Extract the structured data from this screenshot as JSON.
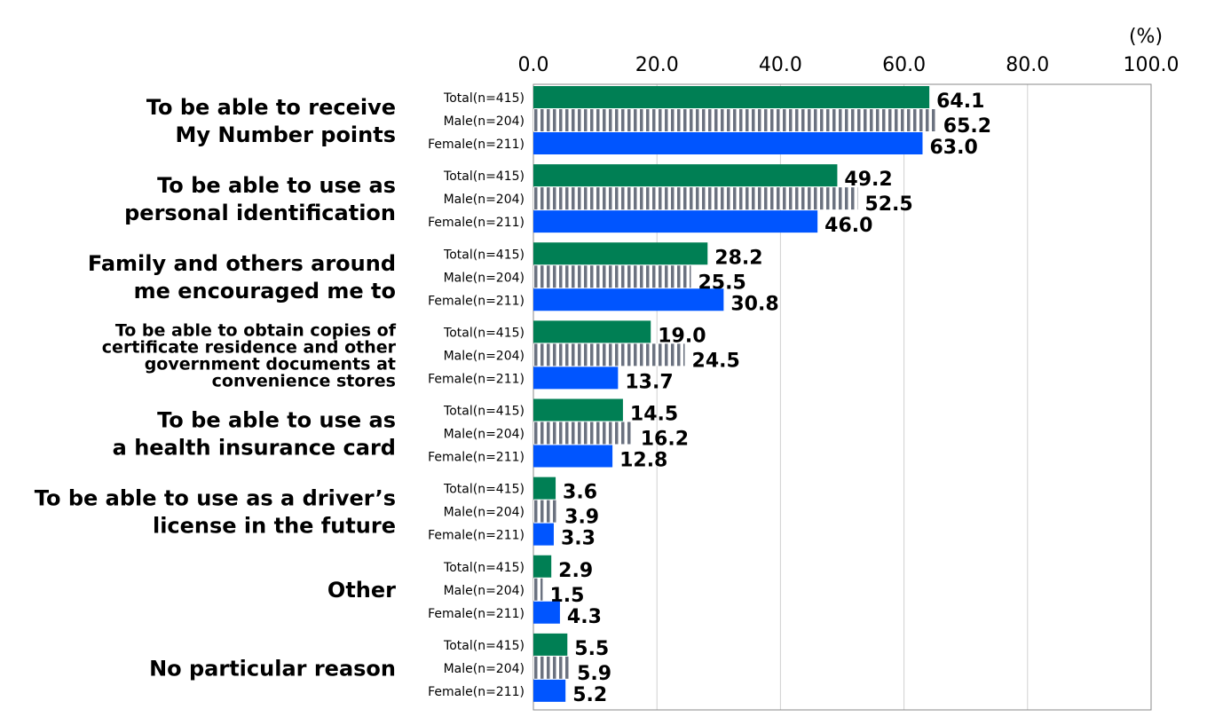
{
  "chart_data": {
    "type": "bar",
    "orientation": "horizontal",
    "unit_label": "(%)",
    "xlim": [
      0,
      100
    ],
    "ticks": [
      "0.0",
      "20.0",
      "40.0",
      "60.0",
      "80.0",
      "100.0"
    ],
    "grid": true,
    "categories": [
      [
        "To be able to receive",
        "My Number points"
      ],
      [
        "To be able to use as",
        "personal identification"
      ],
      [
        "Family and others around",
        "me encouraged me to"
      ],
      [
        "To be able to obtain copies of",
        "certificate residence and other",
        "government documents at",
        "convenience stores"
      ],
      [
        "To be able to use as",
        "a health insurance card"
      ],
      [
        "To be able to use as a driver’s",
        "license in the future"
      ],
      [
        "Other"
      ],
      [
        "No particular reason"
      ]
    ],
    "series": [
      {
        "name": "Total(n=415)",
        "color": "#007F54",
        "pattern": "solid",
        "values": [
          64.1,
          49.2,
          28.2,
          19.0,
          14.5,
          3.6,
          2.9,
          5.5
        ]
      },
      {
        "name": "Male(n=204)",
        "color": "#6B7280",
        "pattern": "vertical-stripes",
        "values": [
          65.2,
          52.5,
          25.5,
          24.5,
          16.2,
          3.9,
          1.5,
          5.9
        ]
      },
      {
        "name": "Female(n=211)",
        "color": "#0055FF",
        "pattern": "solid",
        "values": [
          63.0,
          46.0,
          30.8,
          13.7,
          12.8,
          3.3,
          4.3,
          5.2
        ]
      }
    ]
  }
}
